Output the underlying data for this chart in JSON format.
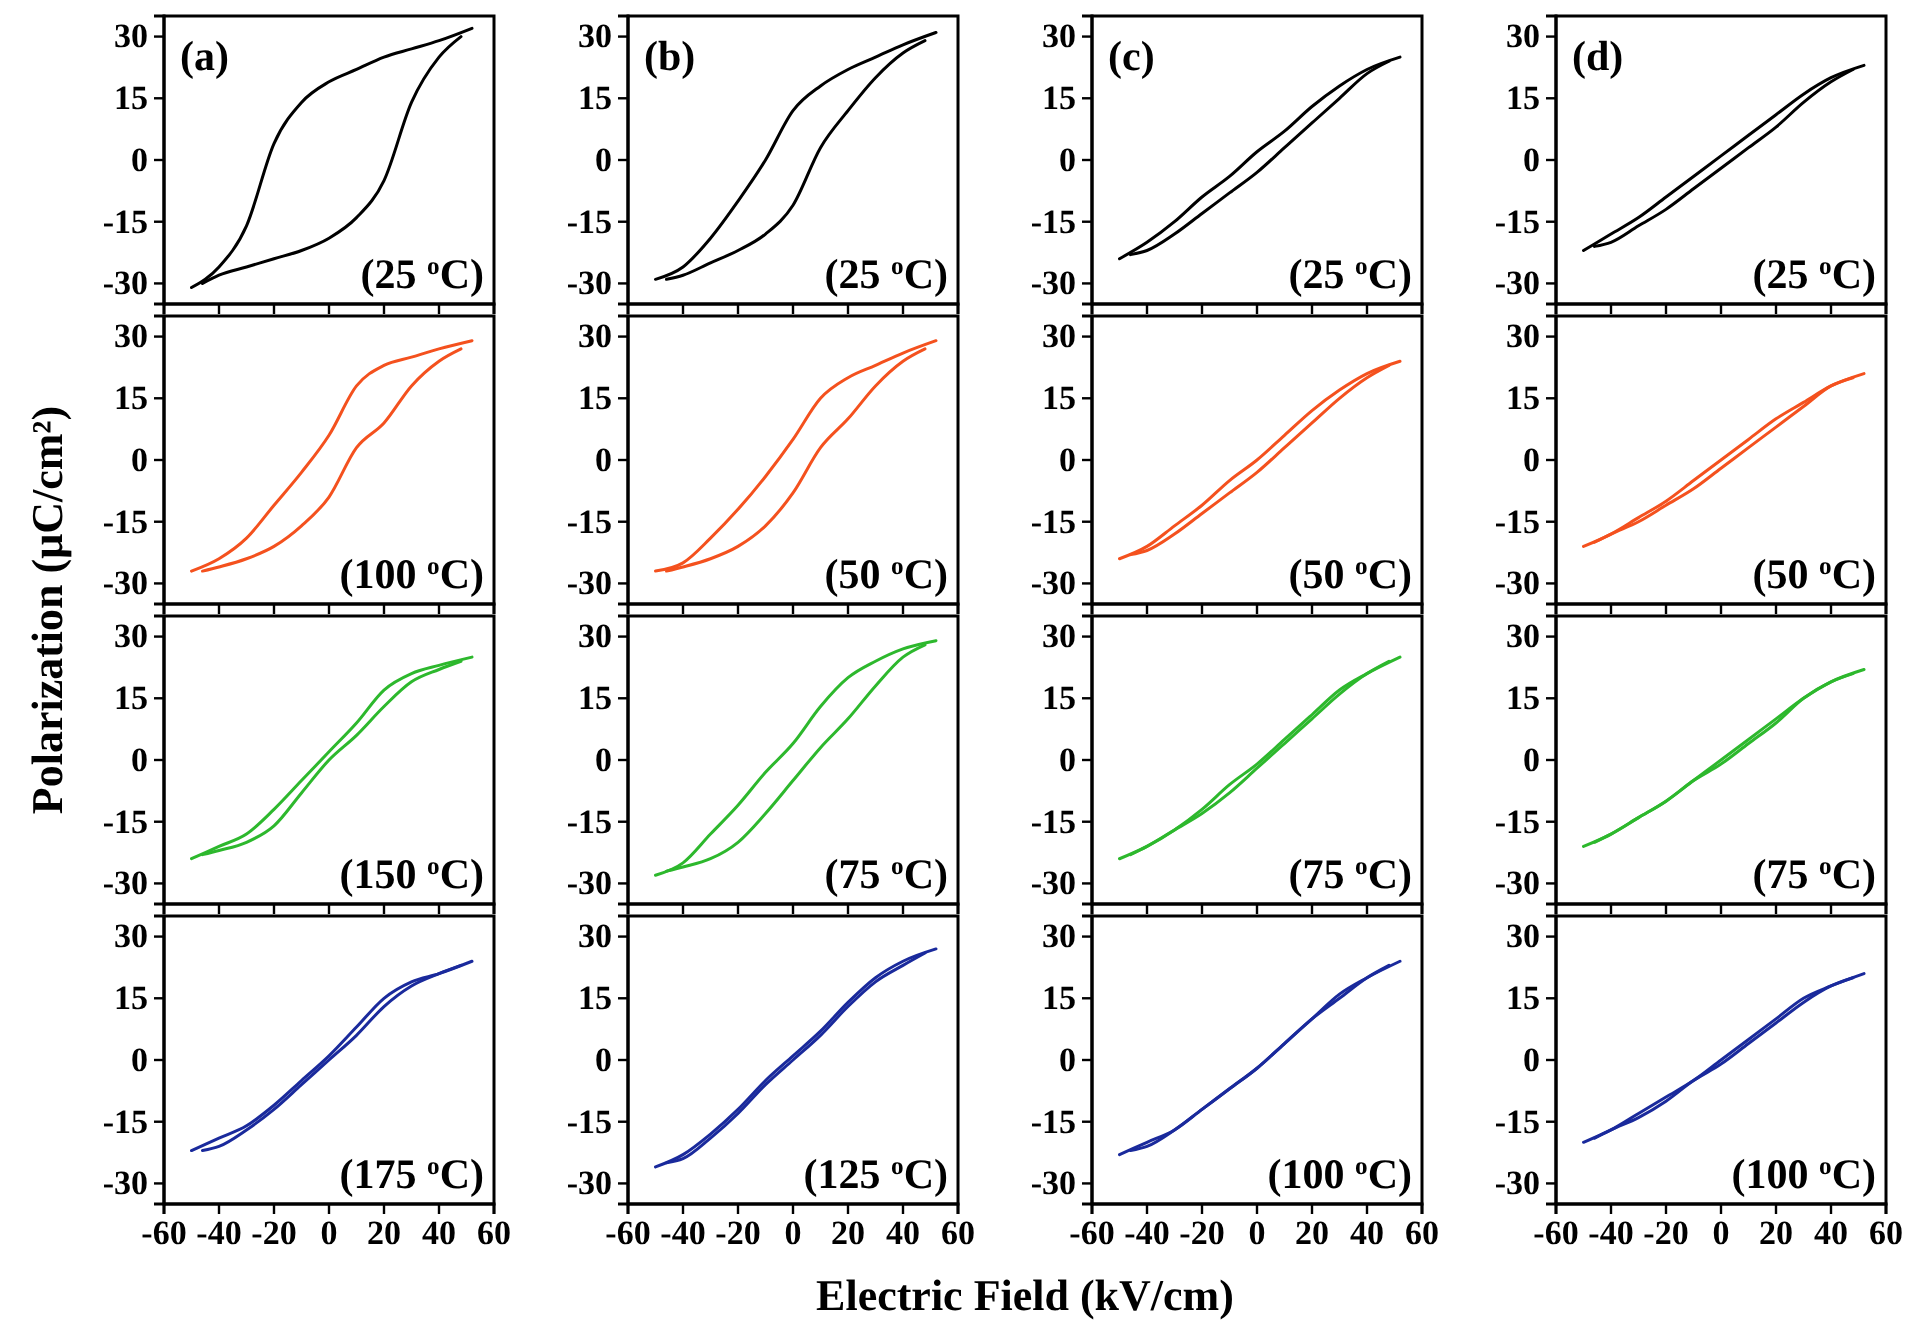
{
  "chart_data": [
    {
      "type": "line",
      "ylabel": "Polarization (μC/cm²)",
      "annotations": [
        "(a)",
        "(25 $^{o}$C)"
      ],
      "tick_labels": "y",
      "xlim": [
        -60,
        60
      ],
      "xticks": [
        -60,
        -40,
        -20,
        0,
        20,
        40,
        60
      ],
      "ylim": [
        -35,
        35
      ],
      "yticks": [
        -30,
        -15,
        0,
        15,
        30
      ],
      "x": [
        -50,
        -40,
        -30,
        -20,
        -10,
        0,
        10,
        20,
        30,
        40,
        52
      ],
      "series": [
        {
          "color": "#000000",
          "values": [
            -31,
            -26,
            -16,
            4,
            14,
            19,
            22,
            25,
            27,
            29,
            32
          ]
        },
        {
          "color": "#000000",
          "x": [
            -46,
            -40,
            -30,
            -20,
            -10,
            0,
            10,
            20,
            30,
            40,
            48
          ],
          "values": [
            -30,
            -28,
            -26,
            -24,
            -22,
            -19,
            -14,
            -5,
            14,
            25,
            30
          ]
        }
      ]
    },
    {
      "type": "line",
      "annotations": [
        "(b)",
        "(25 $^{o}$C)"
      ],
      "tick_labels": "y",
      "xlim": [
        -60,
        60
      ],
      "xticks": [
        -60,
        -40,
        -20,
        0,
        20,
        40,
        60
      ],
      "ylim": [
        -35,
        35
      ],
      "yticks": [
        -30,
        -15,
        0,
        15,
        30
      ],
      "x": [
        -50,
        -40,
        -30,
        -20,
        -10,
        0,
        10,
        20,
        30,
        40,
        52
      ],
      "series": [
        {
          "color": "#000000",
          "values": [
            -29,
            -26,
            -19,
            -10,
            0,
            12,
            18,
            22,
            25,
            28,
            31
          ]
        },
        {
          "color": "#000000",
          "x": [
            -46,
            -40,
            -30,
            -20,
            -10,
            0,
            10,
            20,
            30,
            40,
            48
          ],
          "values": [
            -29,
            -28,
            -25,
            -22,
            -18,
            -11,
            3,
            12,
            20,
            26,
            29
          ]
        }
      ]
    },
    {
      "type": "line",
      "annotations": [
        "(c)",
        "(25 $^{o}$C)"
      ],
      "tick_labels": "y",
      "xlim": [
        -60,
        60
      ],
      "xticks": [
        -60,
        -40,
        -20,
        0,
        20,
        40,
        60
      ],
      "ylim": [
        -35,
        35
      ],
      "yticks": [
        -30,
        -15,
        0,
        15,
        30
      ],
      "x": [
        -50,
        -40,
        -30,
        -20,
        -10,
        0,
        10,
        20,
        30,
        40,
        52
      ],
      "series": [
        {
          "color": "#000000",
          "values": [
            -24,
            -20,
            -15,
            -9,
            -4,
            2,
            7,
            13,
            18,
            22,
            25
          ]
        },
        {
          "color": "#000000",
          "x": [
            -46,
            -40,
            -30,
            -20,
            -10,
            0,
            10,
            20,
            30,
            40,
            48
          ],
          "values": [
            -23,
            -22,
            -18,
            -13,
            -8,
            -3,
            3,
            9,
            15,
            21,
            24
          ]
        }
      ]
    },
    {
      "type": "line",
      "annotations": [
        "(d)",
        "(25 $^{o}$C)"
      ],
      "tick_labels": "y",
      "xlim": [
        -60,
        60
      ],
      "xticks": [
        -60,
        -40,
        -20,
        0,
        20,
        40,
        60
      ],
      "ylim": [
        -35,
        35
      ],
      "yticks": [
        -30,
        -15,
        0,
        15,
        30
      ],
      "x": [
        -50,
        -40,
        -30,
        -20,
        -10,
        0,
        10,
        20,
        30,
        40,
        52
      ],
      "series": [
        {
          "color": "#000000",
          "values": [
            -22,
            -18,
            -14,
            -9,
            -4,
            1,
            6,
            11,
            16,
            20,
            23
          ]
        },
        {
          "color": "#000000",
          "x": [
            -46,
            -40,
            -30,
            -20,
            -10,
            0,
            10,
            20,
            30,
            40,
            48
          ],
          "values": [
            -21,
            -20,
            -16,
            -12,
            -7,
            -2,
            3,
            8,
            14,
            19,
            22
          ]
        }
      ]
    },
    {
      "type": "line",
      "annotations": [
        "(100 $^{o}$C)"
      ],
      "tick_labels": "y",
      "xlim": [
        -60,
        60
      ],
      "xticks": [
        -60,
        -40,
        -20,
        0,
        20,
        40,
        60
      ],
      "ylim": [
        -35,
        35
      ],
      "yticks": [
        -30,
        -15,
        0,
        15,
        30
      ],
      "x": [
        -50,
        -40,
        -30,
        -20,
        -10,
        0,
        10,
        20,
        30,
        40,
        52
      ],
      "series": [
        {
          "color": "#f4511e",
          "values": [
            -27,
            -24,
            -19,
            -11,
            -3,
            6,
            18,
            23,
            25,
            27,
            29
          ]
        },
        {
          "color": "#f4511e",
          "x": [
            -46,
            -40,
            -30,
            -20,
            -10,
            0,
            10,
            20,
            30,
            40,
            48
          ],
          "values": [
            -27,
            -26,
            -24,
            -21,
            -16,
            -9,
            3,
            9,
            18,
            24,
            27
          ]
        }
      ]
    },
    {
      "type": "line",
      "annotations": [
        "(50 $^{o}$C)"
      ],
      "tick_labels": "y",
      "xlim": [
        -60,
        60
      ],
      "xticks": [
        -60,
        -40,
        -20,
        0,
        20,
        40,
        60
      ],
      "ylim": [
        -35,
        35
      ],
      "yticks": [
        -30,
        -15,
        0,
        15,
        30
      ],
      "x": [
        -50,
        -40,
        -30,
        -20,
        -10,
        0,
        10,
        20,
        30,
        40,
        52
      ],
      "series": [
        {
          "color": "#f4511e",
          "values": [
            -27,
            -25,
            -19,
            -12,
            -4,
            5,
            15,
            20,
            23,
            26,
            29
          ]
        },
        {
          "color": "#f4511e",
          "x": [
            -46,
            -40,
            -30,
            -20,
            -10,
            0,
            10,
            20,
            30,
            40,
            48
          ],
          "values": [
            -27,
            -26,
            -24,
            -21,
            -16,
            -8,
            3,
            10,
            18,
            24,
            27
          ]
        }
      ]
    },
    {
      "type": "line",
      "annotations": [
        "(50 $^{o}$C)"
      ],
      "tick_labels": "y",
      "xlim": [
        -60,
        60
      ],
      "xticks": [
        -60,
        -40,
        -20,
        0,
        20,
        40,
        60
      ],
      "ylim": [
        -35,
        35
      ],
      "yticks": [
        -30,
        -15,
        0,
        15,
        30
      ],
      "x": [
        -50,
        -40,
        -30,
        -20,
        -10,
        0,
        10,
        20,
        30,
        40,
        52
      ],
      "series": [
        {
          "color": "#f4511e",
          "values": [
            -24,
            -21,
            -16,
            -11,
            -5,
            0,
            6,
            12,
            17,
            21,
            24
          ]
        },
        {
          "color": "#f4511e",
          "x": [
            -46,
            -40,
            -30,
            -20,
            -10,
            0,
            10,
            20,
            30,
            40,
            48
          ],
          "values": [
            -23,
            -22,
            -18,
            -13,
            -8,
            -3,
            3,
            9,
            15,
            20,
            23
          ]
        }
      ]
    },
    {
      "type": "line",
      "annotations": [
        "(50 $^{o}$C)"
      ],
      "tick_labels": "y",
      "xlim": [
        -60,
        60
      ],
      "xticks": [
        -60,
        -40,
        -20,
        0,
        20,
        40,
        60
      ],
      "ylim": [
        -35,
        35
      ],
      "yticks": [
        -30,
        -15,
        0,
        15,
        30
      ],
      "x": [
        -50,
        -40,
        -30,
        -20,
        -10,
        0,
        10,
        20,
        30,
        40,
        52
      ],
      "series": [
        {
          "color": "#f4511e",
          "values": [
            -21,
            -18,
            -14,
            -10,
            -5,
            0,
            5,
            10,
            14,
            18,
            21
          ]
        },
        {
          "color": "#f4511e",
          "x": [
            -46,
            -40,
            -30,
            -20,
            -10,
            0,
            10,
            20,
            30,
            40,
            48
          ],
          "values": [
            -20,
            -18,
            -15,
            -11,
            -7,
            -2,
            3,
            8,
            13,
            18,
            20
          ]
        }
      ]
    },
    {
      "type": "line",
      "annotations": [
        "(150 $^{o}$C)"
      ],
      "tick_labels": "y",
      "xlim": [
        -60,
        60
      ],
      "xticks": [
        -60,
        -40,
        -20,
        0,
        20,
        40,
        60
      ],
      "ylim": [
        -35,
        35
      ],
      "yticks": [
        -30,
        -15,
        0,
        15,
        30
      ],
      "x": [
        -50,
        -40,
        -30,
        -20,
        -10,
        0,
        10,
        20,
        30,
        40,
        52
      ],
      "series": [
        {
          "color": "#2db82d",
          "values": [
            -24,
            -21,
            -18,
            -12,
            -5,
            2,
            9,
            17,
            21,
            23,
            25
          ]
        },
        {
          "color": "#2db82d",
          "x": [
            -46,
            -40,
            -30,
            -20,
            -10,
            0,
            10,
            20,
            30,
            40,
            48
          ],
          "values": [
            -23,
            -22,
            -20,
            -16,
            -8,
            0,
            6,
            13,
            19,
            22,
            24
          ]
        }
      ]
    },
    {
      "type": "line",
      "annotations": [
        "(75 $^{o}$C)"
      ],
      "tick_labels": "y",
      "xlim": [
        -60,
        60
      ],
      "xticks": [
        -60,
        -40,
        -20,
        0,
        20,
        40,
        60
      ],
      "ylim": [
        -35,
        35
      ],
      "yticks": [
        -30,
        -15,
        0,
        15,
        30
      ],
      "x": [
        -50,
        -40,
        -30,
        -20,
        -10,
        0,
        10,
        20,
        30,
        40,
        52
      ],
      "series": [
        {
          "color": "#2db82d",
          "values": [
            -28,
            -25,
            -18,
            -11,
            -3,
            4,
            13,
            20,
            24,
            27,
            29
          ]
        },
        {
          "color": "#2db82d",
          "x": [
            -46,
            -40,
            -30,
            -20,
            -10,
            0,
            10,
            20,
            30,
            40,
            48
          ],
          "values": [
            -27,
            -26,
            -24,
            -20,
            -13,
            -5,
            3,
            10,
            18,
            25,
            28
          ]
        }
      ]
    },
    {
      "type": "line",
      "annotations": [
        "(75 $^{o}$C)"
      ],
      "tick_labels": "y",
      "xlim": [
        -60,
        60
      ],
      "xticks": [
        -60,
        -40,
        -20,
        0,
        20,
        40,
        60
      ],
      "ylim": [
        -35,
        35
      ],
      "yticks": [
        -30,
        -15,
        0,
        15,
        30
      ],
      "x": [
        -50,
        -40,
        -30,
        -20,
        -10,
        0,
        10,
        20,
        30,
        40,
        52
      ],
      "series": [
        {
          "color": "#2db82d",
          "values": [
            -24,
            -21,
            -17,
            -12,
            -6,
            -1,
            5,
            11,
            17,
            21,
            25
          ]
        },
        {
          "color": "#2db82d",
          "x": [
            -46,
            -40,
            -30,
            -20,
            -10,
            0,
            10,
            20,
            30,
            40,
            48
          ],
          "values": [
            -23,
            -21,
            -17,
            -13,
            -8,
            -2,
            4,
            10,
            16,
            21,
            24
          ]
        }
      ]
    },
    {
      "type": "line",
      "annotations": [
        "(75 $^{o}$C)"
      ],
      "tick_labels": "y",
      "xlim": [
        -60,
        60
      ],
      "xticks": [
        -60,
        -40,
        -20,
        0,
        20,
        40,
        60
      ],
      "ylim": [
        -35,
        35
      ],
      "yticks": [
        -30,
        -15,
        0,
        15,
        30
      ],
      "x": [
        -50,
        -40,
        -30,
        -20,
        -10,
        0,
        10,
        20,
        30,
        40,
        52
      ],
      "series": [
        {
          "color": "#2db82d",
          "values": [
            -21,
            -18,
            -14,
            -10,
            -5,
            0,
            5,
            10,
            15,
            19,
            22
          ]
        },
        {
          "color": "#2db82d",
          "x": [
            -46,
            -40,
            -30,
            -20,
            -10,
            0,
            10,
            20,
            30,
            40,
            48
          ],
          "values": [
            -20,
            -18,
            -14,
            -10,
            -5,
            -1,
            4,
            9,
            15,
            19,
            21
          ]
        }
      ]
    },
    {
      "type": "line",
      "annotations": [
        "(175 $^{o}$C)"
      ],
      "xlim": [
        -60,
        60
      ],
      "xticks": [
        -60,
        -40,
        -20,
        0,
        20,
        40,
        60
      ],
      "ylim": [
        -35,
        35
      ],
      "yticks": [
        -30,
        -15,
        0,
        15,
        30
      ],
      "x": [
        -50,
        -40,
        -30,
        -20,
        -10,
        0,
        10,
        20,
        30,
        40,
        52
      ],
      "series": [
        {
          "color": "#1a2a9c",
          "values": [
            -22,
            -19,
            -16,
            -11,
            -5,
            1,
            8,
            15,
            19,
            21,
            24
          ]
        },
        {
          "color": "#1a2a9c",
          "x": [
            -46,
            -40,
            -30,
            -20,
            -10,
            0,
            10,
            20,
            30,
            40,
            48
          ],
          "values": [
            -22,
            -21,
            -17,
            -12,
            -6,
            0,
            6,
            13,
            18,
            21,
            23
          ]
        }
      ]
    },
    {
      "type": "line",
      "xlabel": "Electric Field (kV/cm)",
      "annotations": [
        "(125 $^{o}$C)"
      ],
      "xlim": [
        -60,
        60
      ],
      "xticks": [
        -60,
        -40,
        -20,
        0,
        20,
        40,
        60
      ],
      "ylim": [
        -35,
        35
      ],
      "yticks": [
        -30,
        -15,
        0,
        15,
        30
      ],
      "x": [
        -50,
        -40,
        -30,
        -20,
        -10,
        0,
        10,
        20,
        30,
        40,
        52
      ],
      "series": [
        {
          "color": "#1a2a9c",
          "values": [
            -26,
            -23,
            -18,
            -12,
            -5,
            1,
            7,
            14,
            20,
            24,
            27
          ]
        },
        {
          "color": "#1a2a9c",
          "x": [
            -46,
            -40,
            -30,
            -20,
            -10,
            0,
            10,
            20,
            30,
            40,
            48
          ],
          "values": [
            -25,
            -24,
            -19,
            -13,
            -6,
            0,
            6,
            13,
            19,
            23,
            26
          ]
        }
      ]
    },
    {
      "type": "line",
      "annotations": [
        "(100 $^{o}$C)"
      ],
      "xlim": [
        -60,
        60
      ],
      "xticks": [
        -60,
        -40,
        -20,
        0,
        20,
        40,
        60
      ],
      "ylim": [
        -35,
        35
      ],
      "yticks": [
        -30,
        -15,
        0,
        15,
        30
      ],
      "x": [
        -50,
        -40,
        -30,
        -20,
        -10,
        0,
        10,
        20,
        30,
        40,
        52
      ],
      "series": [
        {
          "color": "#1a2a9c",
          "values": [
            -23,
            -20,
            -17,
            -12,
            -7,
            -2,
            4,
            10,
            16,
            20,
            24
          ]
        },
        {
          "color": "#1a2a9c",
          "x": [
            -46,
            -40,
            -30,
            -20,
            -10,
            0,
            10,
            20,
            30,
            40,
            48
          ],
          "values": [
            -22,
            -21,
            -17,
            -12,
            -7,
            -2,
            4,
            10,
            15,
            20,
            23
          ]
        }
      ]
    },
    {
      "type": "line",
      "annotations": [
        "(100 $^{o}$C)"
      ],
      "xlim": [
        -60,
        60
      ],
      "xticks": [
        -60,
        -40,
        -20,
        0,
        20,
        40,
        60
      ],
      "ylim": [
        -35,
        35
      ],
      "yticks": [
        -30,
        -15,
        0,
        15,
        30
      ],
      "x": [
        -50,
        -40,
        -30,
        -20,
        -10,
        0,
        10,
        20,
        30,
        40,
        52
      ],
      "series": [
        {
          "color": "#1a2a9c",
          "values": [
            -20,
            -17,
            -13,
            -9,
            -5,
            0,
            5,
            10,
            15,
            18,
            21
          ]
        },
        {
          "color": "#1a2a9c",
          "x": [
            -46,
            -40,
            -30,
            -20,
            -10,
            0,
            10,
            20,
            30,
            40,
            48
          ],
          "values": [
            -19,
            -17,
            -14,
            -10,
            -5,
            -1,
            4,
            9,
            14,
            18,
            20
          ]
        }
      ]
    }
  ]
}
